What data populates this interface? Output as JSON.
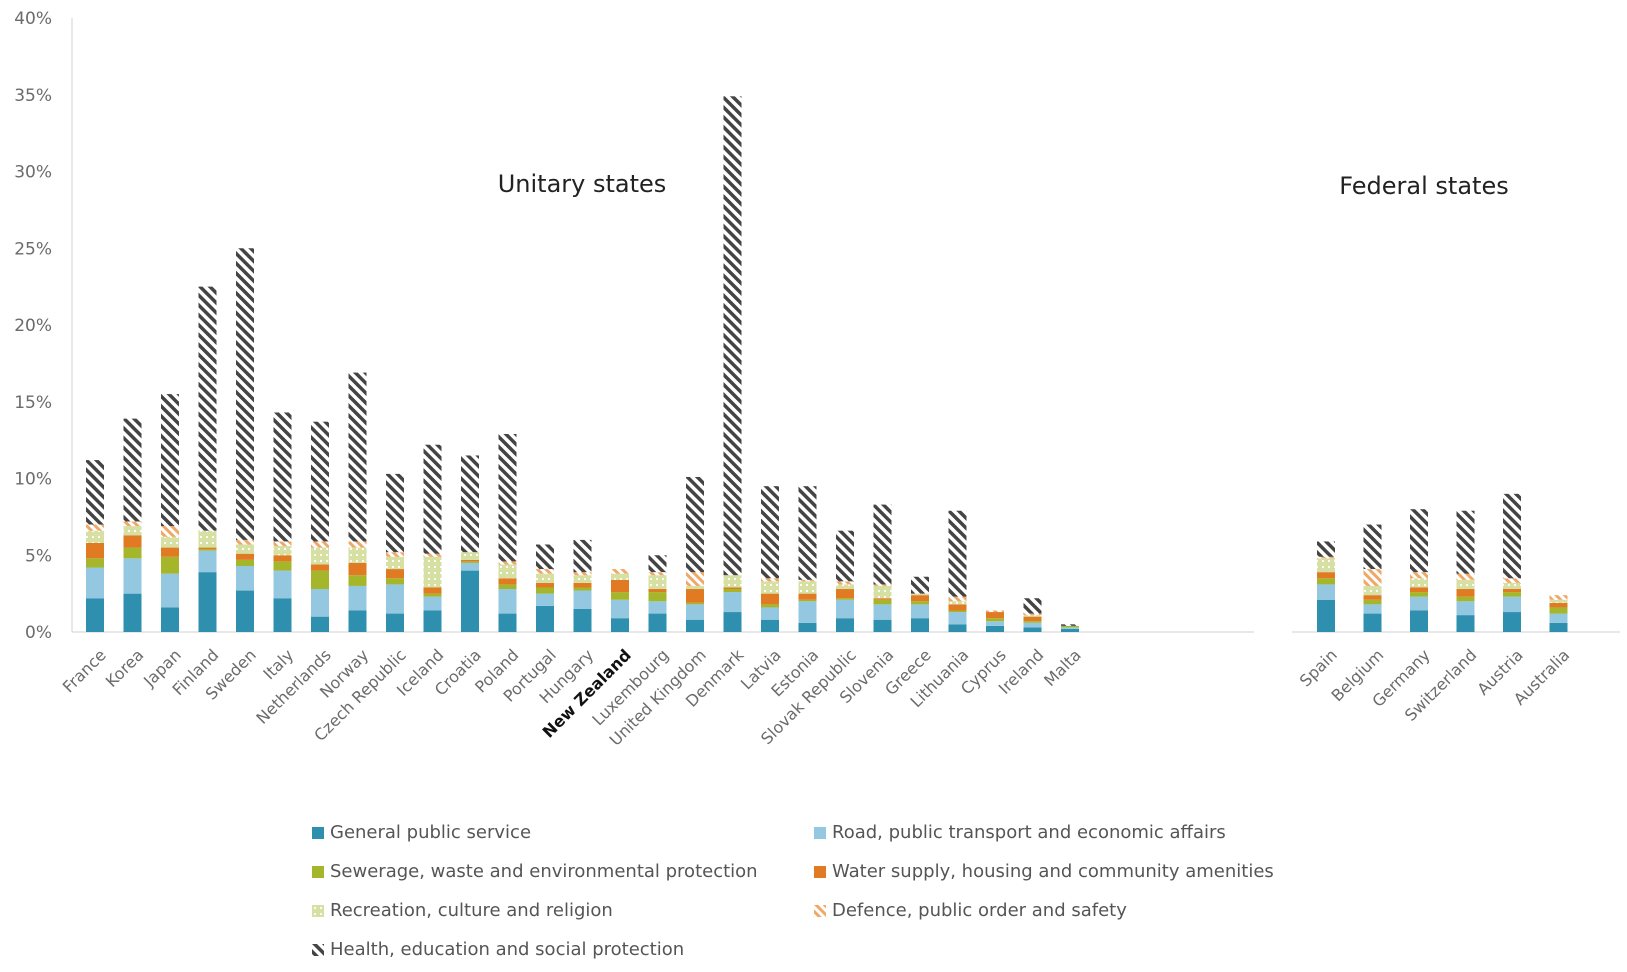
{
  "chart_data": {
    "type": "bar",
    "stacked": true,
    "y_axis": {
      "min": 0,
      "max": 40,
      "tick_step": 5,
      "tick_labels": [
        "0%",
        "5%",
        "10%",
        "15%",
        "20%",
        "25%",
        "30%",
        "35%",
        "40%"
      ]
    },
    "groups": [
      {
        "label": "Unitary states",
        "categories": [
          "France",
          "Korea",
          "Japan",
          "Finland",
          "Sweden",
          "Italy",
          "Netherlands",
          "Norway",
          "Czech Republic",
          "Iceland",
          "Croatia",
          "Poland",
          "Portugal",
          "Hungary",
          "New Zealand",
          "Luxembourg",
          "United Kingdom",
          "Denmark",
          "Latvia",
          "Estonia",
          "Slovak Republic",
          "Slovenia",
          "Greece",
          "Lithuania",
          "Cyprus",
          "Ireland",
          "Malta"
        ]
      },
      {
        "label": "Federal states",
        "categories": [
          "Spain",
          "Belgium",
          "Germany",
          "Switzerland",
          "Austria",
          "Australia"
        ]
      }
    ],
    "highlight_category": "New Zealand",
    "series": [
      {
        "name": "General public service",
        "color": "#2e8fae",
        "pattern": "solid",
        "values": [
          2.2,
          2.5,
          1.6,
          3.9,
          2.7,
          2.2,
          1.0,
          1.4,
          1.2,
          1.4,
          4.0,
          1.2,
          1.7,
          1.5,
          0.9,
          1.2,
          0.8,
          1.3,
          0.8,
          0.6,
          0.9,
          0.8,
          0.9,
          0.5,
          0.4,
          0.3,
          0.2,
          2.1,
          1.2,
          1.4,
          1.1,
          1.3,
          0.6
        ]
      },
      {
        "name": "Road, public transport and economic affairs",
        "color": "#93c8e0",
        "pattern": "solid",
        "values": [
          2.0,
          2.3,
          2.2,
          1.4,
          1.6,
          1.8,
          1.8,
          1.6,
          1.9,
          0.9,
          0.5,
          1.6,
          0.8,
          1.2,
          1.2,
          0.8,
          1.0,
          1.3,
          0.8,
          1.4,
          1.2,
          1.0,
          0.9,
          0.8,
          0.3,
          0.3,
          0.1,
          1.0,
          0.6,
          0.9,
          0.9,
          1.0,
          0.6
        ]
      },
      {
        "name": "Sewerage, waste and environmental protection",
        "color": "#a5b62a",
        "pattern": "solid",
        "values": [
          0.6,
          0.7,
          1.1,
          0.1,
          0.4,
          0.6,
          1.2,
          0.7,
          0.4,
          0.2,
          0.1,
          0.3,
          0.4,
          0.2,
          0.5,
          0.6,
          0.1,
          0.2,
          0.2,
          0.1,
          0.1,
          0.3,
          0.2,
          0.1,
          0.2,
          0.1,
          0.1,
          0.4,
          0.3,
          0.3,
          0.3,
          0.3,
          0.4
        ]
      },
      {
        "name": "Water supply, housing and community amenities",
        "color": "#e07b24",
        "pattern": "solid",
        "values": [
          1.0,
          0.8,
          0.6,
          0.1,
          0.4,
          0.4,
          0.4,
          0.8,
          0.6,
          0.4,
          0.1,
          0.4,
          0.3,
          0.3,
          0.8,
          0.2,
          0.9,
          0.1,
          0.7,
          0.4,
          0.6,
          0.1,
          0.4,
          0.4,
          0.4,
          0.3,
          0.0,
          0.4,
          0.3,
          0.3,
          0.5,
          0.2,
          0.3
        ]
      },
      {
        "name": "Recreation, culture and religion",
        "color": "#d6e0a3",
        "pattern": "dotted",
        "values": [
          0.8,
          0.6,
          0.7,
          1.1,
          0.6,
          0.6,
          1.1,
          1.0,
          0.8,
          2.0,
          0.5,
          0.9,
          0.6,
          0.5,
          0.4,
          0.9,
          0.2,
          0.8,
          0.8,
          0.8,
          0.3,
          0.8,
          0.1,
          0.2,
          0.0,
          0.1,
          0.0,
          0.9,
          0.6,
          0.6,
          0.6,
          0.4,
          0.2
        ]
      },
      {
        "name": "Defence, public order and safety",
        "color": "#f0a868",
        "pattern": "hatched",
        "values": [
          0.4,
          0.3,
          0.7,
          0.0,
          0.3,
          0.3,
          0.4,
          0.4,
          0.3,
          0.2,
          0.0,
          0.2,
          0.3,
          0.2,
          0.3,
          0.2,
          0.9,
          0.0,
          0.2,
          0.1,
          0.2,
          0.1,
          0.0,
          0.3,
          0.1,
          0.1,
          0.0,
          0.1,
          1.1,
          0.4,
          0.4,
          0.3,
          0.3
        ]
      },
      {
        "name": "Health, education and social protection",
        "color": "#444444",
        "pattern": "hatched",
        "values": [
          4.2,
          6.7,
          8.6,
          15.9,
          19.0,
          8.4,
          7.8,
          11.0,
          5.1,
          7.1,
          6.3,
          8.3,
          1.6,
          2.1,
          0.0,
          1.1,
          6.2,
          31.2,
          6.0,
          6.1,
          3.3,
          5.2,
          1.1,
          5.6,
          0.0,
          1.0,
          0.1,
          1.0,
          2.9,
          4.1,
          4.1,
          5.5,
          0.0
        ]
      }
    ],
    "legend_position": "bottom",
    "grid": false
  }
}
